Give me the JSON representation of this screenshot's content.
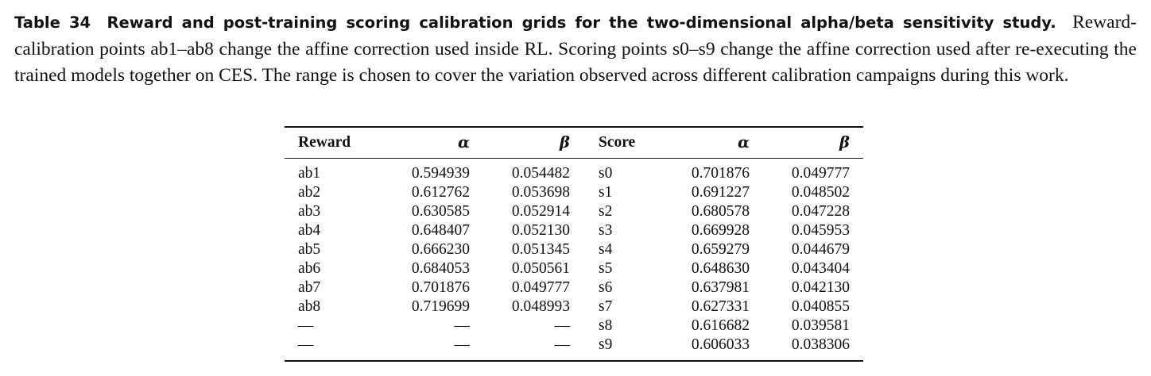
{
  "caption": {
    "label": "Table 34",
    "title": "Reward and post-training scoring calibration grids for the two-dimensional alpha/beta sensitivity study.",
    "text": "Reward-calibration points ab1–ab8 change the affine correction used inside RL. Scoring points s0–s9 change the affine correction used after re-executing the trained models together on CES. The range is chosen to cover the variation observed across different calibration campaigns during this work."
  },
  "table": {
    "header": [
      "Reward",
      "α",
      "β",
      "Score",
      "α",
      "β"
    ],
    "rows": [
      [
        "ab1",
        "0.594939",
        "0.054482",
        "s0",
        "0.701876",
        "0.049777"
      ],
      [
        "ab2",
        "0.612762",
        "0.053698",
        "s1",
        "0.691227",
        "0.048502"
      ],
      [
        "ab3",
        "0.630585",
        "0.052914",
        "s2",
        "0.680578",
        "0.047228"
      ],
      [
        "ab4",
        "0.648407",
        "0.052130",
        "s3",
        "0.669928",
        "0.045953"
      ],
      [
        "ab5",
        "0.666230",
        "0.051345",
        "s4",
        "0.659279",
        "0.044679"
      ],
      [
        "ab6",
        "0.684053",
        "0.050561",
        "s5",
        "0.648630",
        "0.043404"
      ],
      [
        "ab7",
        "0.701876",
        "0.049777",
        "s6",
        "0.637981",
        "0.042130"
      ],
      [
        "ab8",
        "0.719699",
        "0.048993",
        "s7",
        "0.627331",
        "0.040855"
      ],
      [
        "—",
        "—",
        "—",
        "s8",
        "0.616682",
        "0.039581"
      ],
      [
        "—",
        "—",
        "—",
        "s9",
        "0.606033",
        "0.038306"
      ]
    ]
  }
}
